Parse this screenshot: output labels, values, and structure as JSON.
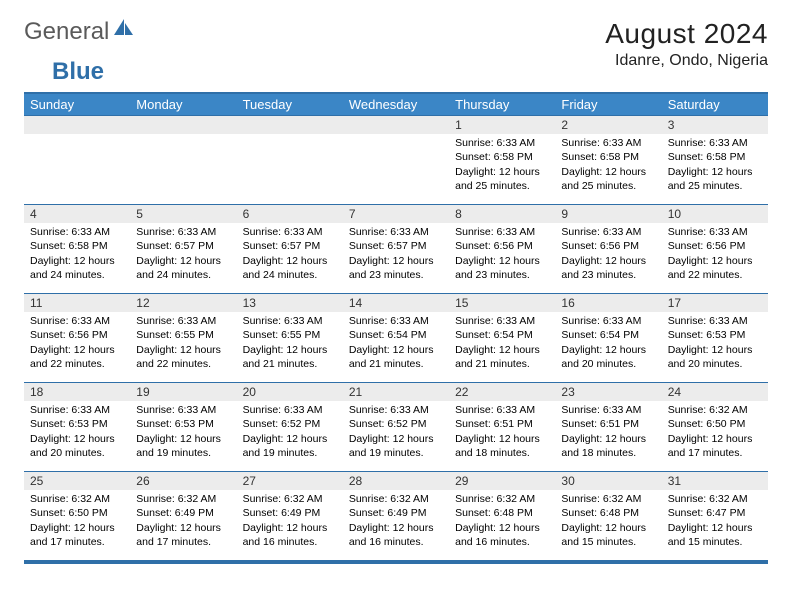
{
  "logo": {
    "part1": "General",
    "part2": "Blue"
  },
  "title": "August 2024",
  "location": "Idanre, Ondo, Nigeria",
  "colors": {
    "header_bg": "#3b86c6",
    "border": "#2f6fa8",
    "daynum_bg": "#ececec",
    "logo_gray": "#5a5a5a",
    "logo_blue": "#2f6fa8"
  },
  "day_names": [
    "Sunday",
    "Monday",
    "Tuesday",
    "Wednesday",
    "Thursday",
    "Friday",
    "Saturday"
  ],
  "weeks": [
    [
      {
        "n": "",
        "sr": "",
        "ss": "",
        "dl": ""
      },
      {
        "n": "",
        "sr": "",
        "ss": "",
        "dl": ""
      },
      {
        "n": "",
        "sr": "",
        "ss": "",
        "dl": ""
      },
      {
        "n": "",
        "sr": "",
        "ss": "",
        "dl": ""
      },
      {
        "n": "1",
        "sr": "6:33 AM",
        "ss": "6:58 PM",
        "dl": "12 hours and 25 minutes."
      },
      {
        "n": "2",
        "sr": "6:33 AM",
        "ss": "6:58 PM",
        "dl": "12 hours and 25 minutes."
      },
      {
        "n": "3",
        "sr": "6:33 AM",
        "ss": "6:58 PM",
        "dl": "12 hours and 25 minutes."
      }
    ],
    [
      {
        "n": "4",
        "sr": "6:33 AM",
        "ss": "6:58 PM",
        "dl": "12 hours and 24 minutes."
      },
      {
        "n": "5",
        "sr": "6:33 AM",
        "ss": "6:57 PM",
        "dl": "12 hours and 24 minutes."
      },
      {
        "n": "6",
        "sr": "6:33 AM",
        "ss": "6:57 PM",
        "dl": "12 hours and 24 minutes."
      },
      {
        "n": "7",
        "sr": "6:33 AM",
        "ss": "6:57 PM",
        "dl": "12 hours and 23 minutes."
      },
      {
        "n": "8",
        "sr": "6:33 AM",
        "ss": "6:56 PM",
        "dl": "12 hours and 23 minutes."
      },
      {
        "n": "9",
        "sr": "6:33 AM",
        "ss": "6:56 PM",
        "dl": "12 hours and 23 minutes."
      },
      {
        "n": "10",
        "sr": "6:33 AM",
        "ss": "6:56 PM",
        "dl": "12 hours and 22 minutes."
      }
    ],
    [
      {
        "n": "11",
        "sr": "6:33 AM",
        "ss": "6:56 PM",
        "dl": "12 hours and 22 minutes."
      },
      {
        "n": "12",
        "sr": "6:33 AM",
        "ss": "6:55 PM",
        "dl": "12 hours and 22 minutes."
      },
      {
        "n": "13",
        "sr": "6:33 AM",
        "ss": "6:55 PM",
        "dl": "12 hours and 21 minutes."
      },
      {
        "n": "14",
        "sr": "6:33 AM",
        "ss": "6:54 PM",
        "dl": "12 hours and 21 minutes."
      },
      {
        "n": "15",
        "sr": "6:33 AM",
        "ss": "6:54 PM",
        "dl": "12 hours and 21 minutes."
      },
      {
        "n": "16",
        "sr": "6:33 AM",
        "ss": "6:54 PM",
        "dl": "12 hours and 20 minutes."
      },
      {
        "n": "17",
        "sr": "6:33 AM",
        "ss": "6:53 PM",
        "dl": "12 hours and 20 minutes."
      }
    ],
    [
      {
        "n": "18",
        "sr": "6:33 AM",
        "ss": "6:53 PM",
        "dl": "12 hours and 20 minutes."
      },
      {
        "n": "19",
        "sr": "6:33 AM",
        "ss": "6:53 PM",
        "dl": "12 hours and 19 minutes."
      },
      {
        "n": "20",
        "sr": "6:33 AM",
        "ss": "6:52 PM",
        "dl": "12 hours and 19 minutes."
      },
      {
        "n": "21",
        "sr": "6:33 AM",
        "ss": "6:52 PM",
        "dl": "12 hours and 19 minutes."
      },
      {
        "n": "22",
        "sr": "6:33 AM",
        "ss": "6:51 PM",
        "dl": "12 hours and 18 minutes."
      },
      {
        "n": "23",
        "sr": "6:33 AM",
        "ss": "6:51 PM",
        "dl": "12 hours and 18 minutes."
      },
      {
        "n": "24",
        "sr": "6:32 AM",
        "ss": "6:50 PM",
        "dl": "12 hours and 17 minutes."
      }
    ],
    [
      {
        "n": "25",
        "sr": "6:32 AM",
        "ss": "6:50 PM",
        "dl": "12 hours and 17 minutes."
      },
      {
        "n": "26",
        "sr": "6:32 AM",
        "ss": "6:49 PM",
        "dl": "12 hours and 17 minutes."
      },
      {
        "n": "27",
        "sr": "6:32 AM",
        "ss": "6:49 PM",
        "dl": "12 hours and 16 minutes."
      },
      {
        "n": "28",
        "sr": "6:32 AM",
        "ss": "6:49 PM",
        "dl": "12 hours and 16 minutes."
      },
      {
        "n": "29",
        "sr": "6:32 AM",
        "ss": "6:48 PM",
        "dl": "12 hours and 16 minutes."
      },
      {
        "n": "30",
        "sr": "6:32 AM",
        "ss": "6:48 PM",
        "dl": "12 hours and 15 minutes."
      },
      {
        "n": "31",
        "sr": "6:32 AM",
        "ss": "6:47 PM",
        "dl": "12 hours and 15 minutes."
      }
    ]
  ],
  "labels": {
    "sunrise": "Sunrise:",
    "sunset": "Sunset:",
    "daylight": "Daylight:"
  }
}
